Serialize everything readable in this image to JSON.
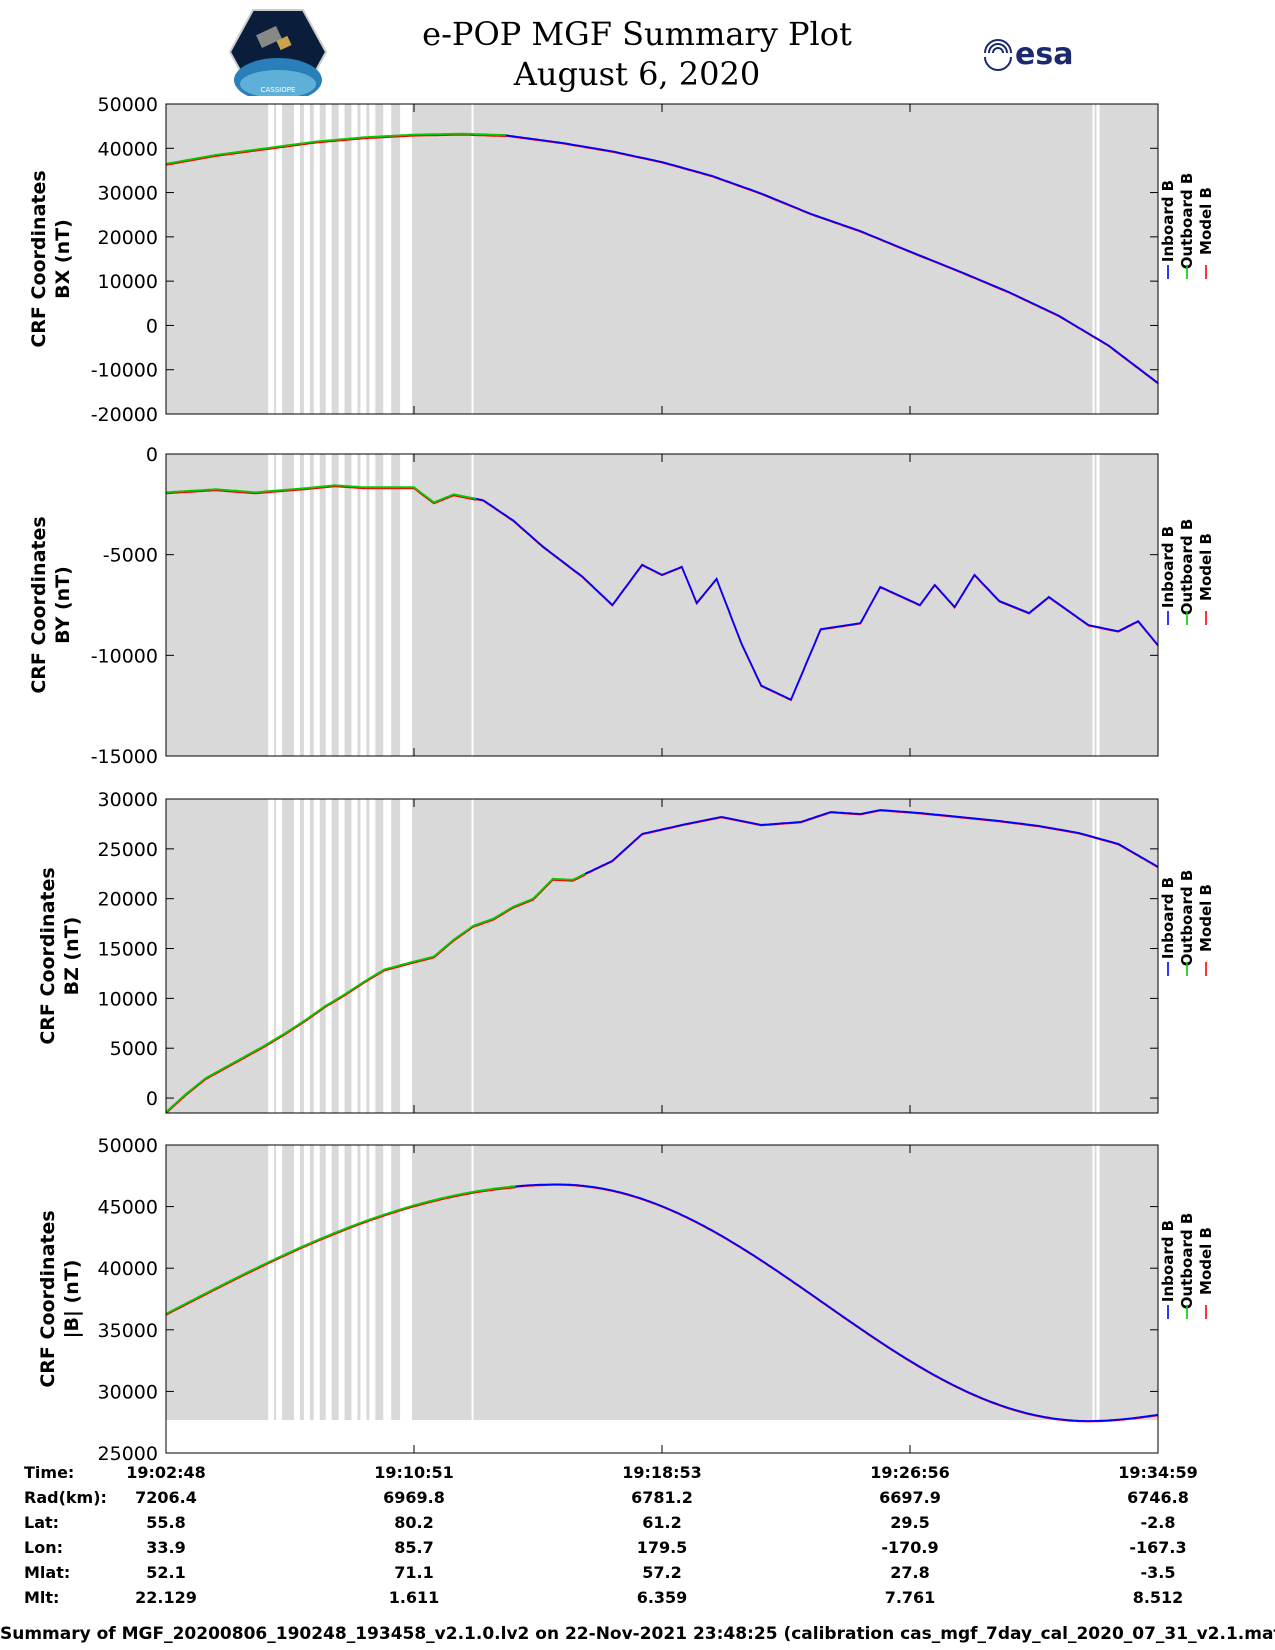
{
  "header": {
    "title_line1": "e-POP MGF Summary Plot",
    "title_line2": "August 6, 2020",
    "logo_left_text": "CASSIOPE",
    "logo_right_text": "esa"
  },
  "colors": {
    "inboard": "#0000ff",
    "outboard": "#00cc00",
    "model": "#ff0000",
    "plot_bg": "#d9d9d9",
    "gap": "#ffffff"
  },
  "chart_data": [
    {
      "type": "line",
      "ylabel_line1": "CRF Coordinates",
      "ylabel_line2": "BX (nT)",
      "ylim": [
        -20000,
        50000
      ],
      "yticks": [
        50000,
        40000,
        30000,
        20000,
        10000,
        0,
        -10000,
        -20000
      ],
      "legend": [
        "Inboard B",
        "Outboard B",
        "Model B"
      ],
      "green_only_until": 0.34,
      "series_points": [
        [
          0,
          36500
        ],
        [
          0.05,
          38500
        ],
        [
          0.1,
          40000
        ],
        [
          0.15,
          41500
        ],
        [
          0.2,
          42500
        ],
        [
          0.25,
          43100
        ],
        [
          0.3,
          43300
        ],
        [
          0.34,
          43000
        ],
        [
          0.4,
          41200
        ],
        [
          0.45,
          39300
        ],
        [
          0.5,
          36900
        ],
        [
          0.55,
          33800
        ],
        [
          0.6,
          29800
        ],
        [
          0.65,
          25200
        ],
        [
          0.7,
          21300
        ],
        [
          0.75,
          16700
        ],
        [
          0.8,
          12200
        ],
        [
          0.85,
          7500
        ],
        [
          0.9,
          2200
        ],
        [
          0.95,
          -4500
        ],
        [
          1.0,
          -13000
        ]
      ]
    },
    {
      "type": "line",
      "ylabel_line1": "CRF Coordinates",
      "ylabel_line2": "BY (nT)",
      "ylim": [
        -15000,
        0
      ],
      "yticks": [
        0,
        -5000,
        -10000,
        -15000
      ],
      "legend": [
        "Inboard B",
        "Outboard B",
        "Model B"
      ],
      "green_only_until": 0.31,
      "series_points": [
        [
          0,
          -1900
        ],
        [
          0.05,
          -1750
        ],
        [
          0.09,
          -1900
        ],
        [
          0.14,
          -1700
        ],
        [
          0.17,
          -1550
        ],
        [
          0.2,
          -1650
        ],
        [
          0.25,
          -1650
        ],
        [
          0.27,
          -2400
        ],
        [
          0.29,
          -2000
        ],
        [
          0.32,
          -2300
        ],
        [
          0.35,
          -3300
        ],
        [
          0.38,
          -4600
        ],
        [
          0.42,
          -6100
        ],
        [
          0.45,
          -7500
        ],
        [
          0.48,
          -5500
        ],
        [
          0.5,
          -6000
        ],
        [
          0.52,
          -5600
        ],
        [
          0.535,
          -7400
        ],
        [
          0.555,
          -6200
        ],
        [
          0.58,
          -9400
        ],
        [
          0.6,
          -11500
        ],
        [
          0.63,
          -12200
        ],
        [
          0.66,
          -8700
        ],
        [
          0.7,
          -8400
        ],
        [
          0.72,
          -6600
        ],
        [
          0.76,
          -7500
        ],
        [
          0.775,
          -6500
        ],
        [
          0.795,
          -7600
        ],
        [
          0.815,
          -6000
        ],
        [
          0.84,
          -7300
        ],
        [
          0.87,
          -7900
        ],
        [
          0.89,
          -7100
        ],
        [
          0.93,
          -8500
        ],
        [
          0.96,
          -8800
        ],
        [
          0.98,
          -8300
        ],
        [
          1.0,
          -9500
        ]
      ]
    },
    {
      "type": "line",
      "ylabel_line1": "CRF Coordinates",
      "ylabel_line2": "BZ (nT)",
      "ylim": [
        -1500,
        30000
      ],
      "yticks": [
        30000,
        25000,
        20000,
        15000,
        10000,
        5000,
        0
      ],
      "legend": [
        "Inboard B",
        "Outboard B",
        "Model B"
      ],
      "green_only_until": 0.42,
      "series_points": [
        [
          0,
          -1400
        ],
        [
          0.02,
          400
        ],
        [
          0.04,
          2000
        ],
        [
          0.06,
          3100
        ],
        [
          0.08,
          4200
        ],
        [
          0.1,
          5300
        ],
        [
          0.12,
          6500
        ],
        [
          0.14,
          7800
        ],
        [
          0.16,
          9200
        ],
        [
          0.18,
          10400
        ],
        [
          0.2,
          11700
        ],
        [
          0.22,
          12900
        ],
        [
          0.25,
          13700
        ],
        [
          0.27,
          14200
        ],
        [
          0.29,
          15900
        ],
        [
          0.31,
          17300
        ],
        [
          0.33,
          18000
        ],
        [
          0.35,
          19200
        ],
        [
          0.37,
          20000
        ],
        [
          0.39,
          22000
        ],
        [
          0.41,
          21900
        ],
        [
          0.45,
          23800
        ],
        [
          0.48,
          26500
        ],
        [
          0.52,
          27400
        ],
        [
          0.56,
          28200
        ],
        [
          0.6,
          27400
        ],
        [
          0.64,
          27700
        ],
        [
          0.67,
          28700
        ],
        [
          0.7,
          28500
        ],
        [
          0.72,
          28900
        ],
        [
          0.76,
          28600
        ],
        [
          0.8,
          28200
        ],
        [
          0.84,
          27800
        ],
        [
          0.88,
          27300
        ],
        [
          0.92,
          26600
        ],
        [
          0.96,
          25500
        ],
        [
          1.0,
          23200
        ]
      ]
    },
    {
      "type": "line",
      "ylabel_line1": "CRF Coordinates",
      "ylabel_line2": "|B| (nT)",
      "ylim": [
        25000,
        50000
      ],
      "yticks": [
        50000,
        45000,
        40000,
        35000,
        30000,
        25000
      ],
      "legend": [
        "Inboard B",
        "Outboard B",
        "Model B"
      ],
      "green_only_until": 0.35,
      "sine": {
        "min": 27600,
        "max": 46800,
        "t_max": 0.395,
        "t_min": 0.93,
        "start": 36300,
        "end": 28100
      }
    }
  ],
  "gap_bands": [
    [
      0.103,
      0.109
    ],
    [
      0.111,
      0.117
    ],
    [
      0.129,
      0.135
    ],
    [
      0.139,
      0.145
    ],
    [
      0.149,
      0.155
    ],
    [
      0.161,
      0.167
    ],
    [
      0.174,
      0.18
    ],
    [
      0.187,
      0.193
    ],
    [
      0.196,
      0.202
    ],
    [
      0.205,
      0.211
    ],
    [
      0.219,
      0.227
    ],
    [
      0.236,
      0.248
    ],
    [
      0.308,
      0.31
    ],
    [
      0.934,
      0.936
    ],
    [
      0.938,
      0.941
    ]
  ],
  "table": {
    "labels": [
      "Time:",
      "Rad(km):",
      "Lat:",
      "Lon:",
      "Mlat:",
      "Mlt:"
    ],
    "columns": [
      [
        "19:02:48",
        "7206.4",
        "55.8",
        "33.9",
        "52.1",
        "22.129"
      ],
      [
        "19:10:51",
        "6969.8",
        "80.2",
        "85.7",
        "71.1",
        "1.611"
      ],
      [
        "19:18:53",
        "6781.2",
        "61.2",
        "179.5",
        "57.2",
        "6.359"
      ],
      [
        "19:26:56",
        "6697.9",
        "29.5",
        "-170.9",
        "27.8",
        "7.761"
      ],
      [
        "19:34:59",
        "6746.8",
        "-2.8",
        "-167.3",
        "-3.5",
        "8.512"
      ]
    ]
  },
  "footer": "Summary of MGF_20200806_190248_193458_v2.1.0.lv2 on 22-Nov-2021 23:48:25 (calibration cas_mgf_7day_cal_2020_07_31_v2.1.mat )"
}
